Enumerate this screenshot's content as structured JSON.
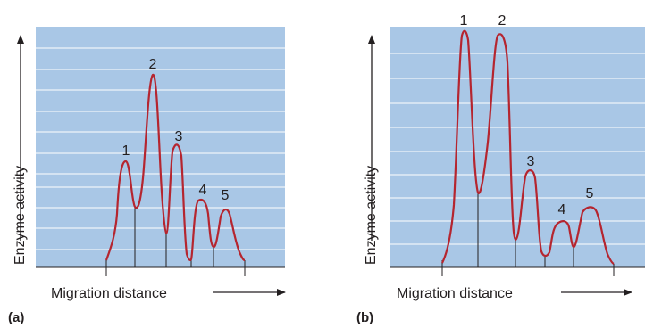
{
  "colors": {
    "plot_background": "#a9c7e6",
    "grid_line": "#ffffff",
    "curve": "#b5252f",
    "ink": "#231f20"
  },
  "panels": [
    {
      "panel_label": "(a)",
      "y_axis_label": "Enzyme activity",
      "x_axis_label": "Migration distance",
      "peaks": [
        {
          "label": "1"
        },
        {
          "label": "2"
        },
        {
          "label": "3"
        },
        {
          "label": "4"
        },
        {
          "label": "5"
        }
      ]
    },
    {
      "panel_label": "(b)",
      "y_axis_label": "Enzyme activity",
      "x_axis_label": "Migration distance",
      "peaks": [
        {
          "label": "1"
        },
        {
          "label": "2"
        },
        {
          "label": "3"
        },
        {
          "label": "4"
        },
        {
          "label": "5"
        }
      ]
    }
  ]
}
